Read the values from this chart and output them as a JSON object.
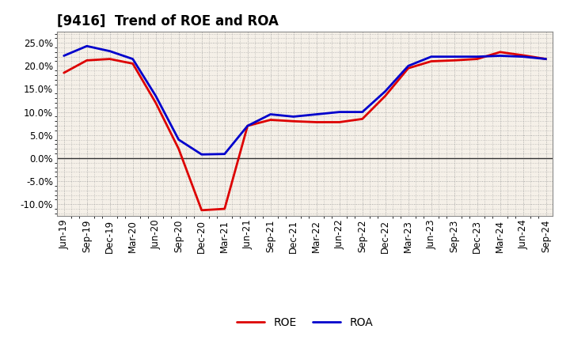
{
  "title": "[9416]  Trend of ROE and ROA",
  "x_labels": [
    "Jun-19",
    "Sep-19",
    "Dec-19",
    "Mar-20",
    "Jun-20",
    "Sep-20",
    "Dec-20",
    "Mar-21",
    "Jun-21",
    "Sep-21",
    "Dec-21",
    "Mar-22",
    "Jun-22",
    "Sep-22",
    "Dec-22",
    "Mar-23",
    "Jun-23",
    "Sep-23",
    "Dec-23",
    "Mar-24",
    "Jun-24",
    "Sep-24"
  ],
  "roe": [
    18.5,
    21.2,
    21.5,
    20.5,
    12.0,
    2.0,
    -11.3,
    -11.0,
    7.0,
    8.3,
    8.0,
    7.8,
    7.8,
    8.5,
    13.5,
    19.5,
    21.0,
    21.2,
    21.5,
    23.0,
    22.3,
    21.5
  ],
  "roa": [
    22.2,
    24.3,
    23.2,
    21.5,
    13.5,
    4.0,
    0.8,
    0.9,
    7.0,
    9.5,
    9.0,
    9.5,
    10.0,
    10.0,
    14.5,
    20.0,
    22.0,
    22.0,
    22.0,
    22.2,
    22.0,
    21.5
  ],
  "roe_color": "#dd0000",
  "roa_color": "#0000cc",
  "line_width": 2.0,
  "ylim": [
    -12.5,
    27.5
  ],
  "yticks": [
    -10.0,
    -5.0,
    0.0,
    5.0,
    10.0,
    15.0,
    20.0,
    25.0
  ],
  "plot_bg_color": "#f5f0e8",
  "fig_bg_color": "#ffffff",
  "grid_color": "#999999",
  "title_fontsize": 12,
  "legend_fontsize": 10,
  "tick_fontsize": 8.5
}
